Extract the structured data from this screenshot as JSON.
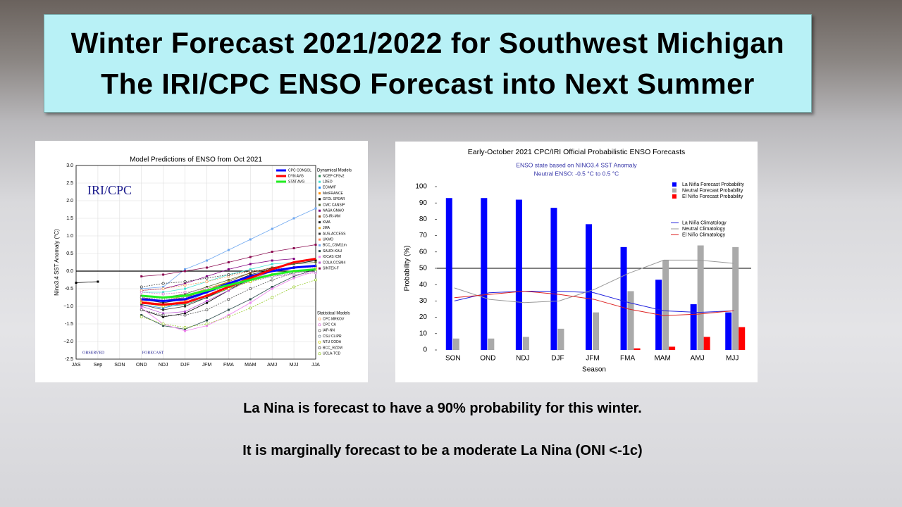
{
  "header": {
    "line1": "Winter Forecast 2021/2022 for Southwest Michigan",
    "line2": "The IRI/CPC ENSO Forecast into Next Summer"
  },
  "captions": [
    "La Nina is forecast to have  a 90% probability for this winter.",
    "It is marginally forecast to be a moderate La Nina (ONI <-1c)"
  ],
  "chart_data": [
    {
      "type": "line",
      "title": "Model Predictions of ENSO from Oct 2021",
      "ylabel": "Nino3.4 SST Anomaly (°C)",
      "annotations": [
        "IRI/CPC",
        "OBSERVED",
        "FORECAST"
      ],
      "legend_titles": [
        "Dynamical Models",
        "Statistical Models"
      ],
      "categories": [
        "JAS",
        "Sep",
        "SON",
        "OND",
        "NDJ",
        "DJF",
        "JFM",
        "FMA",
        "MAM",
        "AMJ",
        "MJJ",
        "JJA"
      ],
      "ylim": [
        -2.5,
        3
      ],
      "yticks": [
        -2.5,
        {
          "value": -2,
          "label": "−2.0"
        },
        -1.5,
        {
          "value": -1,
          "label": "−1.0"
        },
        -0.5,
        {
          "value": 0,
          "label": "0.0"
        },
        0.5,
        {
          "value": 1,
          "label": "1.0"
        },
        1.5,
        {
          "value": 2,
          "label": "2.0"
        },
        2.5,
        {
          "value": 3,
          "label": "3.0"
        }
      ],
      "hline": 0,
      "grid": true,
      "series": [
        {
          "name": "CPC CONSOL",
          "color": "#0000ff",
          "values": [
            null,
            null,
            null,
            -0.8,
            -0.85,
            -0.8,
            -0.6,
            -0.35,
            -0.15,
            0.0,
            0.1,
            0.15
          ]
        },
        {
          "name": "DYN AVG",
          "color": "#ff0000",
          "values": [
            null,
            null,
            null,
            -0.9,
            -0.95,
            -0.9,
            -0.7,
            -0.45,
            -0.2,
            0.05,
            0.25,
            0.35
          ]
        },
        {
          "name": "STAT AVG",
          "color": "#22ee22",
          "values": [
            null,
            null,
            null,
            -0.7,
            -0.75,
            -0.7,
            -0.55,
            -0.4,
            -0.25,
            -0.1,
            0.0,
            0.05
          ]
        },
        {
          "name": "NCEP CFSv2",
          "color": "#2e8b57",
          "values": [
            null,
            null,
            null,
            -0.9,
            -1.0,
            -0.95,
            -0.75,
            -0.5,
            -0.25,
            0.0,
            0.1,
            0.15
          ]
        },
        {
          "name": "LDEO",
          "color": "#40e0d0",
          "values": [
            null,
            null,
            null,
            -0.6,
            -0.6,
            -0.5,
            -0.3,
            -0.1,
            0.05,
            0.2,
            0.25,
            0.3
          ]
        },
        {
          "name": "ECMWF",
          "color": "#1e90ff",
          "values": [
            null,
            null,
            null,
            -0.95,
            -1.05,
            -0.9,
            -0.6,
            -0.3,
            null,
            null,
            null,
            null
          ]
        },
        {
          "name": "MetFRANCE",
          "color": "#ff8c00",
          "values": [
            null,
            null,
            null,
            -0.85,
            -0.95,
            -0.85,
            -0.55,
            -0.3,
            null,
            null,
            null,
            null
          ]
        },
        {
          "name": "GFDL SPEAR",
          "color": "#000000",
          "values": [
            null,
            null,
            null,
            -1.1,
            -1.3,
            -1.2,
            -0.9,
            -0.55,
            -0.2,
            0.1,
            0.2,
            0.3
          ]
        },
        {
          "name": "CMC CANSIP",
          "color": "#556b2f",
          "values": [
            null,
            null,
            null,
            -0.7,
            -0.75,
            -0.65,
            -0.45,
            -0.25,
            -0.05,
            0.1,
            0.2,
            0.25
          ]
        },
        {
          "name": "NASA GMAO",
          "color": "#800080",
          "values": [
            null,
            null,
            null,
            -0.55,
            -0.5,
            -0.35,
            -0.15,
            0.05,
            0.2,
            0.3,
            0.35,
            null
          ]
        },
        {
          "name": "CS-IRI-MM",
          "color": "#8b4513",
          "values": [
            null,
            null,
            null,
            -0.75,
            -0.85,
            -0.75,
            -0.55,
            -0.3,
            -0.05,
            0.1,
            null,
            null
          ]
        },
        {
          "name": "KMA",
          "color": "#222222",
          "values": [
            null,
            null,
            null,
            -0.8,
            -0.9,
            -0.8,
            -0.6,
            -0.35,
            -0.1,
            0.05,
            null,
            null
          ]
        },
        {
          "name": "JMA",
          "color": "#daa520",
          "values": [
            null,
            null,
            null,
            -0.8,
            -0.85,
            -0.7,
            -0.5,
            -0.3,
            null,
            null,
            null,
            null
          ]
        },
        {
          "name": "AUS-ACCESS",
          "color": "#333333",
          "values": [
            null,
            null,
            null,
            -0.95,
            -1.1,
            -1.0,
            -0.75,
            -0.45,
            null,
            null,
            null,
            null
          ]
        },
        {
          "name": "UKMO",
          "color": "#ff7f50",
          "values": [
            null,
            null,
            null,
            -0.85,
            -0.95,
            -0.85,
            -0.6,
            null,
            null,
            null,
            null,
            null
          ]
        },
        {
          "name": "BCC_CSM11m",
          "color": "#6fa8f0",
          "values": [
            null,
            null,
            null,
            -0.5,
            -0.45,
            0.05,
            0.3,
            0.6,
            0.9,
            1.2,
            1.5,
            1.78
          ]
        },
        {
          "name": "SAUDI-KAU",
          "color": "#2f4f4f",
          "values": [
            null,
            null,
            null,
            -1.25,
            -1.55,
            -1.65,
            -1.4,
            -1.1,
            -0.8,
            -0.45,
            -0.15,
            0.05
          ]
        },
        {
          "name": "IOCAS ICM",
          "color": "#ee82ee",
          "values": [
            null,
            null,
            null,
            -1.05,
            -1.5,
            -1.7,
            -1.55,
            -1.25,
            -0.9,
            -0.5,
            -0.2,
            0.0
          ]
        },
        {
          "name": "COLA CCSM4",
          "color": "#ba55d3",
          "values": [
            null,
            null,
            null,
            -1.0,
            -1.2,
            -1.15,
            -0.85,
            -0.55,
            -0.25,
            0.0,
            0.1,
            0.15
          ]
        },
        {
          "name": "SINTEX-F",
          "color": "#8b0a50",
          "values": [
            null,
            null,
            null,
            -0.15,
            -0.1,
            0.0,
            0.1,
            0.25,
            0.4,
            0.55,
            0.65,
            0.75
          ]
        },
        {
          "name": "CPC MRKOV",
          "color": "#f4a460",
          "values": [
            null,
            null,
            null,
            -0.55,
            -0.5,
            -0.4,
            -0.3,
            -0.15,
            0.0,
            0.05,
            0.1,
            0.1
          ]
        },
        {
          "name": "CPC CA",
          "color": "#da70d6",
          "values": [
            null,
            null,
            null,
            -0.6,
            -0.65,
            -0.6,
            -0.5,
            -0.35,
            -0.25,
            -0.15,
            -0.1,
            -0.05
          ]
        },
        {
          "name": "IAP-NN",
          "color": "#555555",
          "values": [
            null,
            null,
            null,
            -1.1,
            -1.25,
            -1.25,
            -1.1,
            -0.8,
            -0.5,
            -0.25,
            -0.05,
            0.05
          ]
        },
        {
          "name": "CSU CLIPR",
          "color": "#708090",
          "values": [
            null,
            null,
            null,
            -0.75,
            -0.8,
            -0.75,
            -0.6,
            -0.45,
            -0.3,
            -0.15,
            -0.05,
            0.0
          ]
        },
        {
          "name": "NTU CODA",
          "color": "#cdcd00",
          "values": [
            null,
            null,
            null,
            -0.9,
            -1.0,
            -0.9,
            -0.7,
            -0.5,
            -0.3,
            -0.1,
            0.0,
            0.05
          ]
        },
        {
          "name": "BCC_RZDM",
          "color": "#444444",
          "values": [
            null,
            null,
            null,
            -0.45,
            -0.35,
            -0.3,
            -0.2,
            -0.1,
            0.0,
            0.05,
            0.1,
            0.15
          ]
        },
        {
          "name": "UCLA-TCD",
          "color": "#9acd32",
          "values": [
            null,
            null,
            null,
            -1.3,
            -1.5,
            -1.6,
            -1.5,
            -1.3,
            -1.05,
            -0.75,
            -0.45,
            -0.25
          ]
        },
        {
          "color": "#000000",
          "values": [
            -0.33,
            -0.3,
            null,
            null,
            null,
            null,
            null,
            null,
            null,
            null,
            null,
            null
          ]
        }
      ]
    },
    {
      "type": "bar",
      "title": "Early-October 2021 CPC/IRI Official Probabilistic ENSO Forecasts",
      "subtitle": [
        "ENSO state based on NINO3.4 SST Anomaly",
        "Neutral ENSO: -0.5 °C to 0.5 °C"
      ],
      "xlabel": "Season",
      "ylabel": "Probability (%)",
      "categories": [
        "SON",
        "OND",
        "NDJ",
        "DJF",
        "JFM",
        "FMA",
        "MAM",
        "AMJ",
        "MJJ"
      ],
      "ylim": [
        0,
        100
      ],
      "yticks": [
        0,
        10,
        20,
        30,
        40,
        50,
        60,
        70,
        80,
        90,
        100
      ],
      "hline": 50,
      "legend": "upper right",
      "series": [
        {
          "name": "La Niña Forecast Probability",
          "color": "#0000ff",
          "values": [
            93,
            93,
            92,
            87,
            77,
            63,
            43,
            28,
            23
          ]
        },
        {
          "name": "Neutral Forecast Probability",
          "color": "#aaaaaa",
          "values": [
            7,
            7,
            8,
            13,
            23,
            36,
            55,
            64,
            63
          ]
        },
        {
          "name": "El Niño Forecast Probability",
          "color": "#ff0000",
          "values": [
            0,
            0,
            0,
            0,
            0,
            1,
            2,
            8,
            14
          ]
        },
        {
          "name": "La Niña Climatology",
          "color": "#2222dd",
          "type": "line",
          "values": [
            30,
            35,
            36,
            36,
            35,
            29,
            24,
            23,
            24
          ]
        },
        {
          "name": "Neutral Climatology",
          "color": "#999999",
          "type": "line",
          "values": [
            38,
            31,
            29,
            30,
            37,
            47,
            55,
            55,
            53
          ]
        },
        {
          "name": "El Niño Climatology",
          "color": "#dd2222",
          "type": "line",
          "values": [
            32,
            34,
            36,
            34,
            31,
            25,
            21,
            22,
            24
          ]
        }
      ]
    }
  ]
}
